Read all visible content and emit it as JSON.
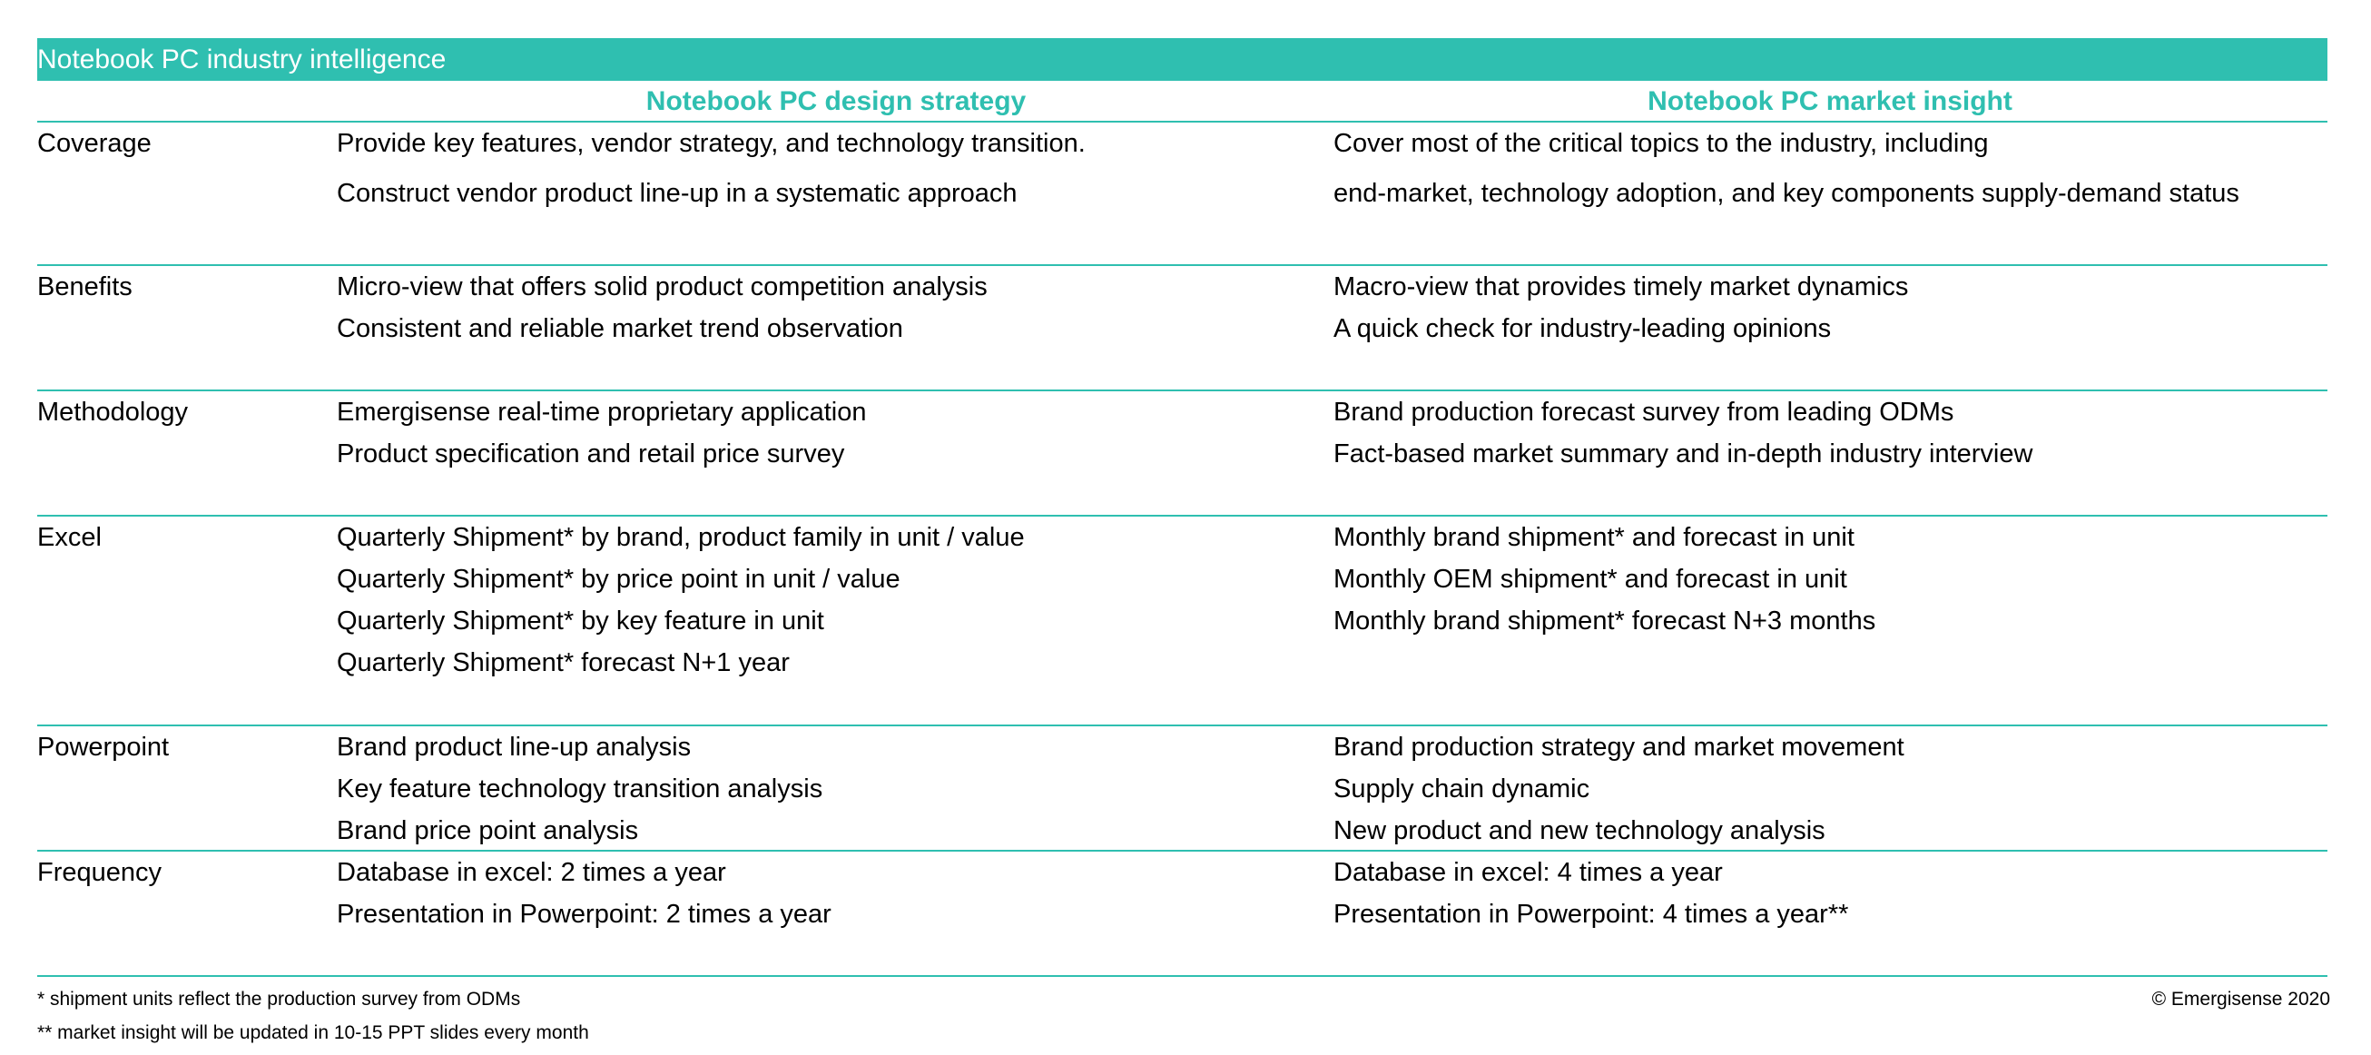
{
  "banner": {
    "title": "Notebook PC industry intelligence"
  },
  "columns": {
    "design": "Notebook PC design strategy",
    "market": "Notebook PC market insight"
  },
  "rows": [
    {
      "label": "Coverage",
      "design": [
        "Provide key features, vendor strategy, and technology transition.",
        "Construct vendor product line-up in a systematic approach"
      ],
      "market": [
        "Cover most of the critical topics to the industry, including",
        "end-market, technology adoption, and key components supply-demand status"
      ]
    },
    {
      "label": "Benefits",
      "design": [
        "Micro-view that offers solid product competition analysis",
        "Consistent and reliable market trend observation"
      ],
      "market": [
        "Macro-view that provides timely market dynamics",
        "A quick check for industry-leading opinions"
      ]
    },
    {
      "label": "Methodology",
      "design": [
        "Emergisense real-time proprietary application",
        "Product specification and retail price survey"
      ],
      "market": [
        "Brand production forecast survey from leading ODMs",
        "Fact-based market summary and in-depth industry interview"
      ]
    },
    {
      "label": "Excel",
      "design": [
        "Quarterly Shipment* by brand, product family in unit / value",
        "Quarterly Shipment* by price point in unit / value",
        "Quarterly Shipment* by key feature in unit",
        "Quarterly Shipment* forecast N+1 year"
      ],
      "market": [
        "Monthly brand shipment* and forecast in unit",
        "Monthly OEM  shipment* and forecast in unit",
        "Monthly brand shipment* forecast N+3 months"
      ]
    },
    {
      "label": "Powerpoint",
      "design": [
        "Brand product line-up analysis",
        "Key feature technology transition analysis",
        "Brand price point analysis"
      ],
      "market": [
        "Brand production strategy and market movement",
        "Supply chain dynamic",
        "New product and new technology analysis"
      ]
    },
    {
      "label": "Frequency",
      "design": [
        "Database in excel: 2 times a year",
        "Presentation in Powerpoint:  2 times a year"
      ],
      "market": [
        "Database in excel: 4 times a year",
        "Presentation in Powerpoint:  4 times a year**"
      ]
    }
  ],
  "footnotes": [
    "* shipment units reflect the production survey from ODMs",
    "** market insight will be updated in 10-15 PPT slides every month"
  ],
  "copyright": "© Emergisense 2020",
  "colors": {
    "accent": "#2fbfb0"
  }
}
